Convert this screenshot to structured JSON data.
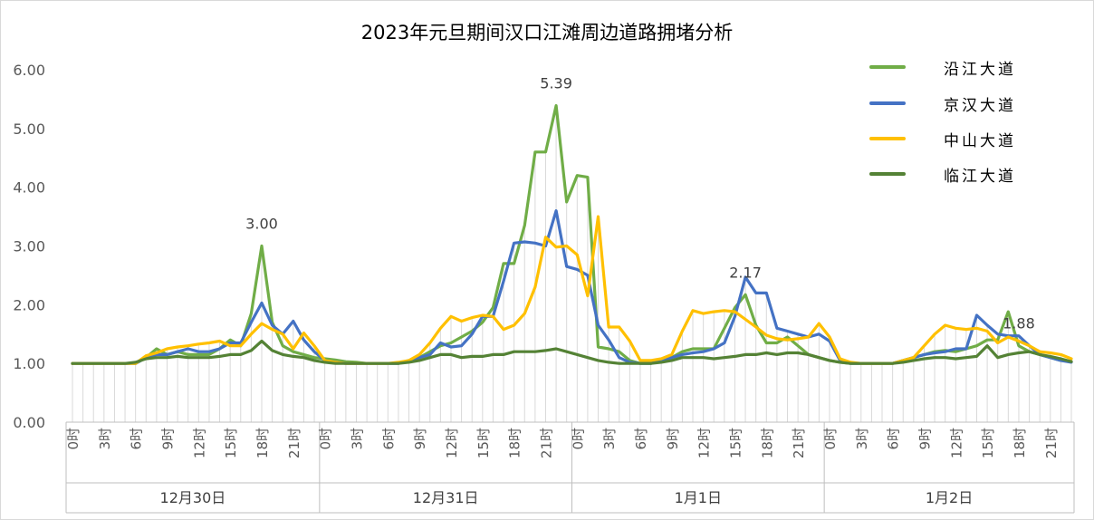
{
  "chart_data": {
    "type": "line",
    "title": "2023年元旦期间汉口江滩周边道路拥堵分析",
    "xlabel": "",
    "ylabel": "",
    "ylim": [
      0,
      6
    ],
    "yticks": [
      "0.00",
      "1.00",
      "2.00",
      "3.00",
      "4.00",
      "5.00",
      "6.00"
    ],
    "grid": "vertical light gray lines at each hour",
    "legend_position": "top-right",
    "days": [
      "12月30日",
      "12月31日",
      "1月1日",
      "1月2日"
    ],
    "hour_tick_labels": [
      "0时",
      "3时",
      "6时",
      "9时",
      "12时",
      "15时",
      "18时",
      "21时"
    ],
    "hours_per_day": 24,
    "annotations": [
      "3.00",
      "5.39",
      "2.17",
      "1.88"
    ],
    "series": [
      {
        "name": "沿江大道",
        "color": "#70AD47",
        "values": [
          1.0,
          1.0,
          1.0,
          1.0,
          1.0,
          1.0,
          1.0,
          1.1,
          1.25,
          1.15,
          1.2,
          1.15,
          1.15,
          1.15,
          1.25,
          1.4,
          1.3,
          1.85,
          3.0,
          1.7,
          1.3,
          1.2,
          1.15,
          1.1,
          1.08,
          1.06,
          1.03,
          1.02,
          1.0,
          1.0,
          1.0,
          1.0,
          1.05,
          1.1,
          1.2,
          1.3,
          1.35,
          1.45,
          1.55,
          1.7,
          1.95,
          2.7,
          2.7,
          3.35,
          4.6,
          4.6,
          5.39,
          3.75,
          4.2,
          4.17,
          1.28,
          1.25,
          1.2,
          1.05,
          1.0,
          1.0,
          1.05,
          1.1,
          1.2,
          1.25,
          1.25,
          1.25,
          1.6,
          1.95,
          2.17,
          1.65,
          1.35,
          1.35,
          1.45,
          1.3,
          1.15,
          1.1,
          1.05,
          1.02,
          1.0,
          1.0,
          1.0,
          1.0,
          1.0,
          1.05,
          1.1,
          1.15,
          1.2,
          1.22,
          1.2,
          1.25,
          1.3,
          1.4,
          1.4,
          1.88,
          1.3,
          1.2,
          1.15,
          1.1,
          1.05,
          1.03
        ]
      },
      {
        "name": "京汉大道",
        "color": "#4472C4",
        "values": [
          1.0,
          1.0,
          1.0,
          1.0,
          1.0,
          1.0,
          1.0,
          1.1,
          1.15,
          1.15,
          1.2,
          1.25,
          1.2,
          1.2,
          1.25,
          1.35,
          1.35,
          1.7,
          2.03,
          1.65,
          1.5,
          1.72,
          1.4,
          1.2,
          1.05,
          1.02,
          1.0,
          1.0,
          1.0,
          1.0,
          1.0,
          1.0,
          1.05,
          1.1,
          1.15,
          1.35,
          1.28,
          1.3,
          1.5,
          1.8,
          1.8,
          2.4,
          3.05,
          3.07,
          3.05,
          3.0,
          3.6,
          2.65,
          2.6,
          2.5,
          1.65,
          1.4,
          1.1,
          1.02,
          1.0,
          1.0,
          1.05,
          1.1,
          1.15,
          1.18,
          1.2,
          1.25,
          1.35,
          1.8,
          2.47,
          2.2,
          2.2,
          1.6,
          1.55,
          1.5,
          1.45,
          1.5,
          1.38,
          1.05,
          1.0,
          1.0,
          1.0,
          1.0,
          1.0,
          1.05,
          1.1,
          1.15,
          1.18,
          1.2,
          1.25,
          1.25,
          1.82,
          1.65,
          1.5,
          1.47,
          1.47,
          1.3,
          1.15,
          1.1,
          1.05,
          1.02
        ]
      },
      {
        "name": "中山大道",
        "color": "#FFC000",
        "values": [
          1.0,
          1.0,
          1.0,
          1.0,
          1.0,
          1.0,
          1.0,
          1.13,
          1.18,
          1.25,
          1.28,
          1.3,
          1.33,
          1.35,
          1.38,
          1.3,
          1.3,
          1.5,
          1.68,
          1.58,
          1.5,
          1.25,
          1.52,
          1.3,
          1.05,
          1.02,
          1.0,
          1.0,
          1.0,
          1.0,
          1.0,
          1.02,
          1.05,
          1.15,
          1.35,
          1.6,
          1.8,
          1.72,
          1.78,
          1.82,
          1.8,
          1.58,
          1.65,
          1.85,
          2.3,
          3.15,
          2.98,
          3.0,
          2.85,
          2.15,
          3.5,
          1.62,
          1.62,
          1.38,
          1.05,
          1.05,
          1.08,
          1.15,
          1.55,
          1.9,
          1.85,
          1.88,
          1.9,
          1.88,
          1.75,
          1.62,
          1.48,
          1.42,
          1.4,
          1.42,
          1.45,
          1.68,
          1.45,
          1.08,
          1.02,
          1.0,
          1.0,
          1.0,
          1.0,
          1.05,
          1.1,
          1.3,
          1.5,
          1.65,
          1.6,
          1.58,
          1.6,
          1.55,
          1.35,
          1.45,
          1.38,
          1.3,
          1.2,
          1.18,
          1.15,
          1.08
        ]
      },
      {
        "name": "临江大道",
        "color": "#548235",
        "values": [
          1.0,
          1.0,
          1.0,
          1.0,
          1.0,
          1.0,
          1.02,
          1.08,
          1.1,
          1.1,
          1.12,
          1.1,
          1.1,
          1.1,
          1.12,
          1.15,
          1.15,
          1.22,
          1.38,
          1.22,
          1.15,
          1.12,
          1.1,
          1.05,
          1.02,
          1.0,
          1.0,
          1.0,
          1.0,
          1.0,
          1.0,
          1.0,
          1.02,
          1.05,
          1.1,
          1.15,
          1.15,
          1.1,
          1.12,
          1.12,
          1.15,
          1.15,
          1.2,
          1.2,
          1.2,
          1.22,
          1.25,
          1.2,
          1.15,
          1.1,
          1.05,
          1.02,
          1.0,
          1.0,
          1.0,
          1.0,
          1.02,
          1.05,
          1.1,
          1.1,
          1.1,
          1.08,
          1.1,
          1.12,
          1.15,
          1.15,
          1.18,
          1.15,
          1.18,
          1.18,
          1.15,
          1.1,
          1.05,
          1.02,
          1.0,
          1.0,
          1.0,
          1.0,
          1.0,
          1.02,
          1.05,
          1.08,
          1.1,
          1.1,
          1.08,
          1.1,
          1.12,
          1.3,
          1.1,
          1.15,
          1.18,
          1.2,
          1.15,
          1.12,
          1.08,
          1.03
        ]
      }
    ]
  }
}
